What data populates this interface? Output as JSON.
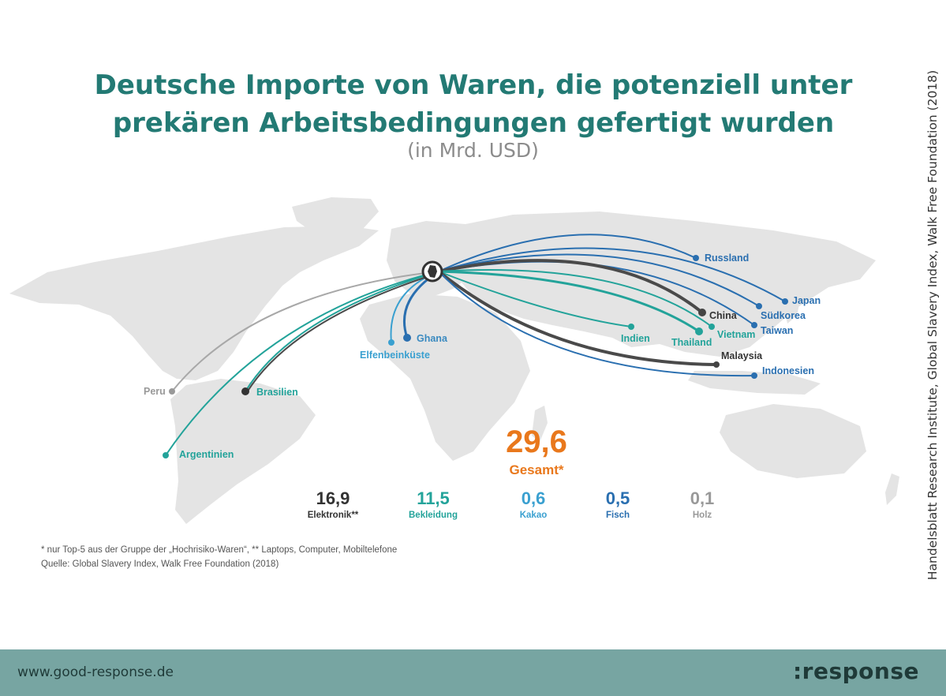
{
  "header": {
    "title": "Deutsche Importe von Waren, die potenziell unter prekären Arbeitsbedingungen gefertigt wurden",
    "subtitle": "(in Mrd. USD)"
  },
  "side_source": "Handelsblatt Research Institute, Global Slavery Index, Walk Free Foundation (2018)",
  "map": {
    "origin": "Deutschland",
    "countries": [
      {
        "name": "Russland",
        "color": "#2a6fb0"
      },
      {
        "name": "Japan",
        "color": "#2a6fb0"
      },
      {
        "name": "China",
        "color": "#333333"
      },
      {
        "name": "Südkorea",
        "color": "#2a6fb0"
      },
      {
        "name": "Taiwan",
        "color": "#2a6fb0"
      },
      {
        "name": "Vietnam",
        "color": "#23a39a"
      },
      {
        "name": "Thailand",
        "color": "#23a39a"
      },
      {
        "name": "Indien",
        "color": "#23a39a"
      },
      {
        "name": "Malaysia",
        "color": "#333333"
      },
      {
        "name": "Indonesien",
        "color": "#2a6fb0"
      },
      {
        "name": "Ghana",
        "color": "#2a6fb0"
      },
      {
        "name": "Elfenbeinküste",
        "color": "#3aa0d0"
      },
      {
        "name": "Peru",
        "color": "#999999"
      },
      {
        "name": "Brasilien",
        "color": "#23a39a"
      },
      {
        "name": "Argentinien",
        "color": "#23a39a"
      }
    ]
  },
  "total": {
    "value": "29,6",
    "label": "Gesamt*",
    "color": "#e9781c"
  },
  "categories": [
    {
      "value": "16,9",
      "label": "Elektronik**",
      "color": "#333333"
    },
    {
      "value": "11,5",
      "label": "Bekleidung",
      "color": "#23a39a"
    },
    {
      "value": "0,6",
      "label": "Kakao",
      "color": "#3aa0d0"
    },
    {
      "value": "0,5",
      "label": "Fisch",
      "color": "#2a6fb0"
    },
    {
      "value": "0,1",
      "label": "Holz",
      "color": "#999999"
    }
  ],
  "footnotes": {
    "line1": "* nur Top-5 aus der Gruppe der „Hochrisiko-Waren“, ** Laptops, Computer, Mobiltelefone",
    "line2": "Quelle: Global Slavery Index, Walk Free Foundation (2018)"
  },
  "footer": {
    "url": "www.good-response.de",
    "logo": ":response"
  }
}
